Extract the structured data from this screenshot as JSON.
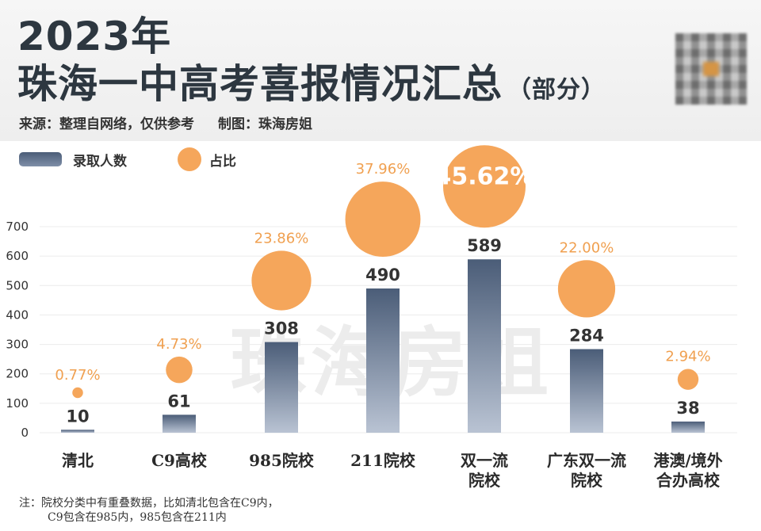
{
  "header": {
    "year": "2023年",
    "title": "珠海一中高考喜报情况汇总",
    "title_suffix": "（部分）",
    "source": "来源：整理自网络，仅供参考",
    "maker": "制图：珠海房姐"
  },
  "legend": {
    "bar_label": "录取人数",
    "dot_label": "占比"
  },
  "watermark": "珠海房姐",
  "note": {
    "line1": "注：院校分类中有重叠数据，比如清北包含在C9内，",
    "line2": "C9包含在985内，985包含在211内"
  },
  "colors": {
    "bar_top": "#4b5d78",
    "bar_bottom": "#b9c3d3",
    "dot": "#f5a65b",
    "pct_text": "#f0a050"
  },
  "chart_data": {
    "type": "bar",
    "categories": [
      "清北",
      "C9高校",
      "985院校",
      "211院校",
      "双一流院校",
      "广东双一流院校",
      "港澳/境外合办高校"
    ],
    "category_lines": [
      [
        "清北"
      ],
      [
        "C9高校"
      ],
      [
        "985院校"
      ],
      [
        "211院校"
      ],
      [
        "双一流",
        "院校"
      ],
      [
        "广东双一流",
        "院校"
      ],
      [
        "港澳/境外",
        "合办高校"
      ]
    ],
    "series": [
      {
        "name": "录取人数",
        "values": [
          10,
          61,
          308,
          490,
          589,
          284,
          38
        ]
      },
      {
        "name": "占比",
        "values": [
          0.77,
          4.73,
          23.86,
          37.96,
          45.62,
          22.0,
          2.94
        ]
      }
    ],
    "value_labels": [
      "10",
      "61",
      "308",
      "490",
      "589",
      "284",
      "38"
    ],
    "pct_labels": [
      "0.77%",
      "4.73%",
      "23.86%",
      "37.96%",
      "45.62%",
      "22.00%",
      "2.94%"
    ],
    "yticks": [
      "0",
      "100",
      "200",
      "300",
      "400",
      "500",
      "600",
      "700"
    ],
    "ylim": [
      0,
      700
    ],
    "grid": true,
    "legend_position": "top-left"
  }
}
